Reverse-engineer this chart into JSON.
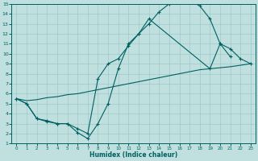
{
  "title": "",
  "xlabel": "Humidex (Indice chaleur)",
  "bg_color": "#c0e0e0",
  "grid_color": "#a0c8c8",
  "line_color": "#006060",
  "xlim": [
    -0.5,
    23.5
  ],
  "ylim": [
    1,
    15
  ],
  "xticks": [
    0,
    1,
    2,
    3,
    4,
    5,
    6,
    7,
    8,
    9,
    10,
    11,
    12,
    13,
    14,
    15,
    16,
    17,
    18,
    19,
    20,
    21,
    22,
    23
  ],
  "yticks": [
    1,
    2,
    3,
    4,
    5,
    6,
    7,
    8,
    9,
    10,
    11,
    12,
    13,
    14,
    15
  ],
  "line1_x": [
    0,
    1,
    2,
    3,
    4,
    5,
    6,
    7,
    8,
    9,
    10,
    11,
    12,
    13,
    14,
    15,
    16,
    17,
    18,
    19,
    20,
    21
  ],
  "line1_y": [
    5.5,
    5.0,
    3.5,
    3.2,
    3.0,
    3.0,
    2.1,
    1.5,
    3.0,
    5.0,
    8.5,
    11.0,
    12.0,
    13.0,
    14.2,
    15.0,
    15.2,
    15.3,
    14.8,
    13.5,
    11.0,
    9.7
  ],
  "line2_x": [
    0,
    1,
    2,
    3,
    4,
    5,
    6,
    7,
    8,
    9,
    10,
    11,
    12,
    13,
    19,
    20,
    21,
    22,
    23
  ],
  "line2_y": [
    5.5,
    5.0,
    3.5,
    3.3,
    3.0,
    3.0,
    2.5,
    2.0,
    7.5,
    9.0,
    9.5,
    10.8,
    12.0,
    13.5,
    8.5,
    11.0,
    10.5,
    9.5,
    9.0
  ],
  "line3_x": [
    0,
    1,
    2,
    3,
    4,
    5,
    6,
    7,
    8,
    9,
    10,
    11,
    12,
    13,
    14,
    15,
    16,
    17,
    18,
    19,
    20,
    21,
    22,
    23
  ],
  "line3_y": [
    5.5,
    5.3,
    5.4,
    5.6,
    5.7,
    5.9,
    6.0,
    6.2,
    6.4,
    6.6,
    6.8,
    7.0,
    7.2,
    7.4,
    7.6,
    7.8,
    8.0,
    8.2,
    8.4,
    8.5,
    8.6,
    8.7,
    8.85,
    9.0
  ]
}
